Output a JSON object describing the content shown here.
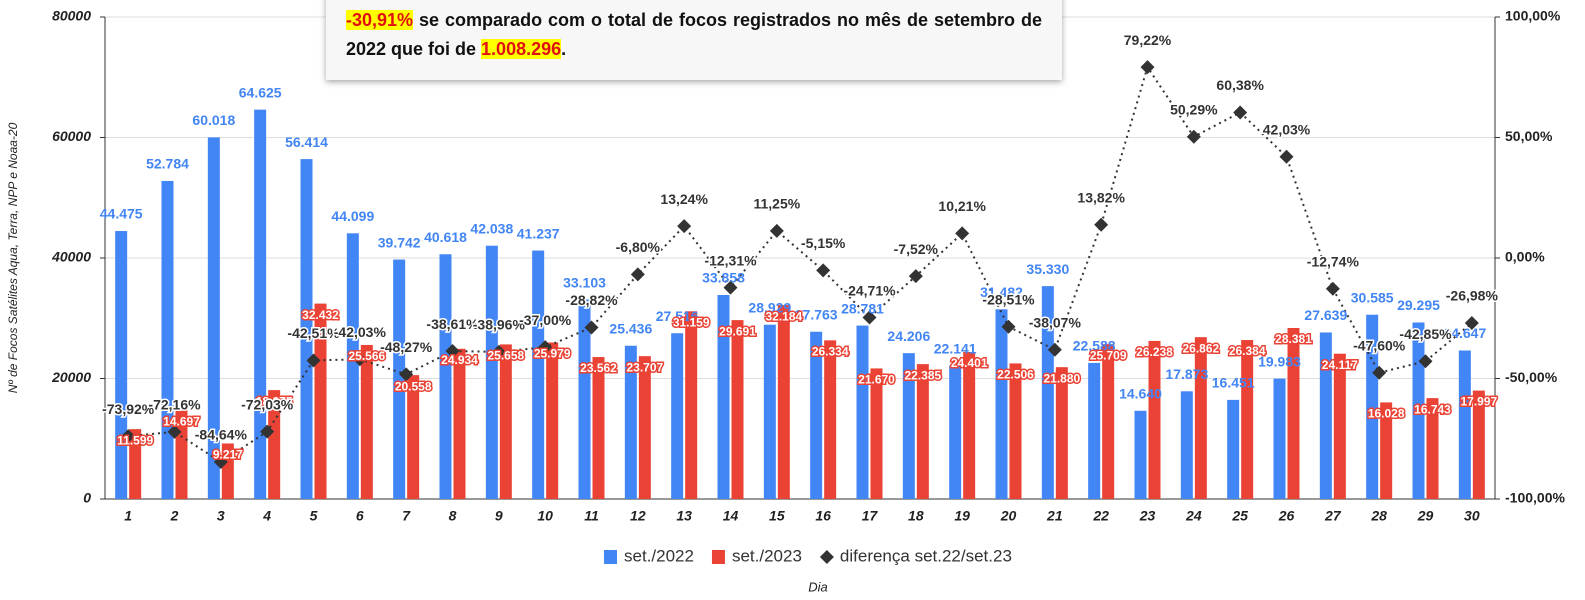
{
  "chart_data": {
    "type": "bar",
    "annotation": [
      "-30,91%",
      " se comparado com o total de focos registrados no mês de setembro de 2022 que foi de ",
      "1.008.296",
      "."
    ],
    "y_label": "Nº de Focos Satélites Aqua, Terra, NPP e Noaa-20",
    "x_label": "Dia",
    "categories": [
      "1",
      "2",
      "3",
      "4",
      "5",
      "6",
      "7",
      "8",
      "9",
      "10",
      "11",
      "12",
      "13",
      "14",
      "15",
      "16",
      "17",
      "18",
      "19",
      "20",
      "21",
      "22",
      "23",
      "24",
      "25",
      "26",
      "27",
      "28",
      "29",
      "30"
    ],
    "ylim": [
      0,
      80000
    ],
    "yticks": [
      0,
      20000,
      40000,
      60000,
      80000
    ],
    "y2lim": [
      -100,
      100
    ],
    "y2ticks": [
      {
        "value": -100,
        "label": "-100,00%"
      },
      {
        "value": -50,
        "label": "-50,00%"
      },
      {
        "value": 0,
        "label": "0,00%"
      },
      {
        "value": 50,
        "label": "50,00%"
      },
      {
        "value": 100,
        "label": "100,00%"
      }
    ],
    "grid": true,
    "legend": "bottom",
    "series": [
      {
        "name": "set./2022",
        "type": "bar",
        "color": "#4285f4",
        "values": [
          44475,
          52784,
          60018,
          64625,
          56414,
          44099,
          39742,
          40618,
          42038,
          41237,
          33103,
          25436,
          27516,
          33858,
          28929,
          27763,
          28781,
          24206,
          22141,
          31482,
          35330,
          22588,
          14640,
          17873,
          16451,
          19983,
          27639,
          30585,
          29295,
          24647
        ],
        "value_labels": [
          "44.475",
          "52.784",
          "60.018",
          "64.625",
          "56.414",
          "44.099",
          "39.742",
          "40.618",
          "42.038",
          "41.237",
          "33.103",
          "25.436",
          "27.516",
          "33.858",
          "28.929",
          "27.763",
          "28.781",
          "24.206",
          "22.141",
          "31.482",
          "35.330",
          "22.588",
          "14.640",
          "17.873",
          "16.451",
          "19.983",
          "27.639",
          "30.585",
          "29.295",
          "24.647"
        ]
      },
      {
        "name": "set./2023",
        "type": "bar",
        "color": "#ea4335",
        "values": [
          11599,
          14697,
          9217,
          18075,
          32432,
          25566,
          20558,
          24934,
          25658,
          25979,
          23562,
          23707,
          31159,
          29691,
          32184,
          26334,
          21670,
          22385,
          24401,
          22506,
          21880,
          25709,
          26238,
          26862,
          26384,
          28381,
          24117,
          16028,
          16743,
          17997
        ],
        "value_labels": [
          "11.599",
          "14.697",
          "9.217",
          "18.075",
          "32.432",
          "25.566",
          "20.558",
          "24.934",
          "25.658",
          "25.979",
          "23.562",
          "23.707",
          "31.159",
          "29.691",
          "32.184",
          "26.334",
          "21.670",
          "22.385",
          "24.401",
          "22.506",
          "21.880",
          "25.709",
          "26.238",
          "26.862",
          "26.384",
          "28.381",
          "24.117",
          "16.028",
          "16.743",
          "17.997"
        ]
      },
      {
        "name": "diferença set.22/set.23",
        "type": "line",
        "axis": "y2",
        "color": "#333333",
        "values": [
          -73.92,
          -72.16,
          -84.64,
          -72.03,
          -42.51,
          -42.03,
          -48.27,
          -38.61,
          -38.96,
          -37.0,
          -28.82,
          -6.8,
          13.24,
          -12.31,
          11.25,
          -5.15,
          -24.71,
          -7.52,
          10.21,
          -28.51,
          -38.07,
          13.82,
          79.22,
          50.29,
          60.38,
          42.03,
          -12.74,
          -47.6,
          -42.85,
          -26.98
        ],
        "value_labels": [
          "-73,92%",
          "-72,16%",
          "-84,64%",
          "-72,03%",
          "-42,51%",
          "-42,03%",
          "-48,27%",
          "-38,61%",
          "-38,96%",
          "-37,00%",
          "-28,82%",
          "-6,80%",
          "13,24%",
          "-12,31%",
          "11,25%",
          "-5,15%",
          "-24,71%",
          "-7,52%",
          "10,21%",
          "-28,51%",
          "-38,07%",
          "13,82%",
          "79,22%",
          "50,29%",
          "60,38%",
          "42,03%",
          "-12,74%",
          "-47,60%",
          "-42,85%",
          "-26,98%"
        ]
      }
    ]
  }
}
